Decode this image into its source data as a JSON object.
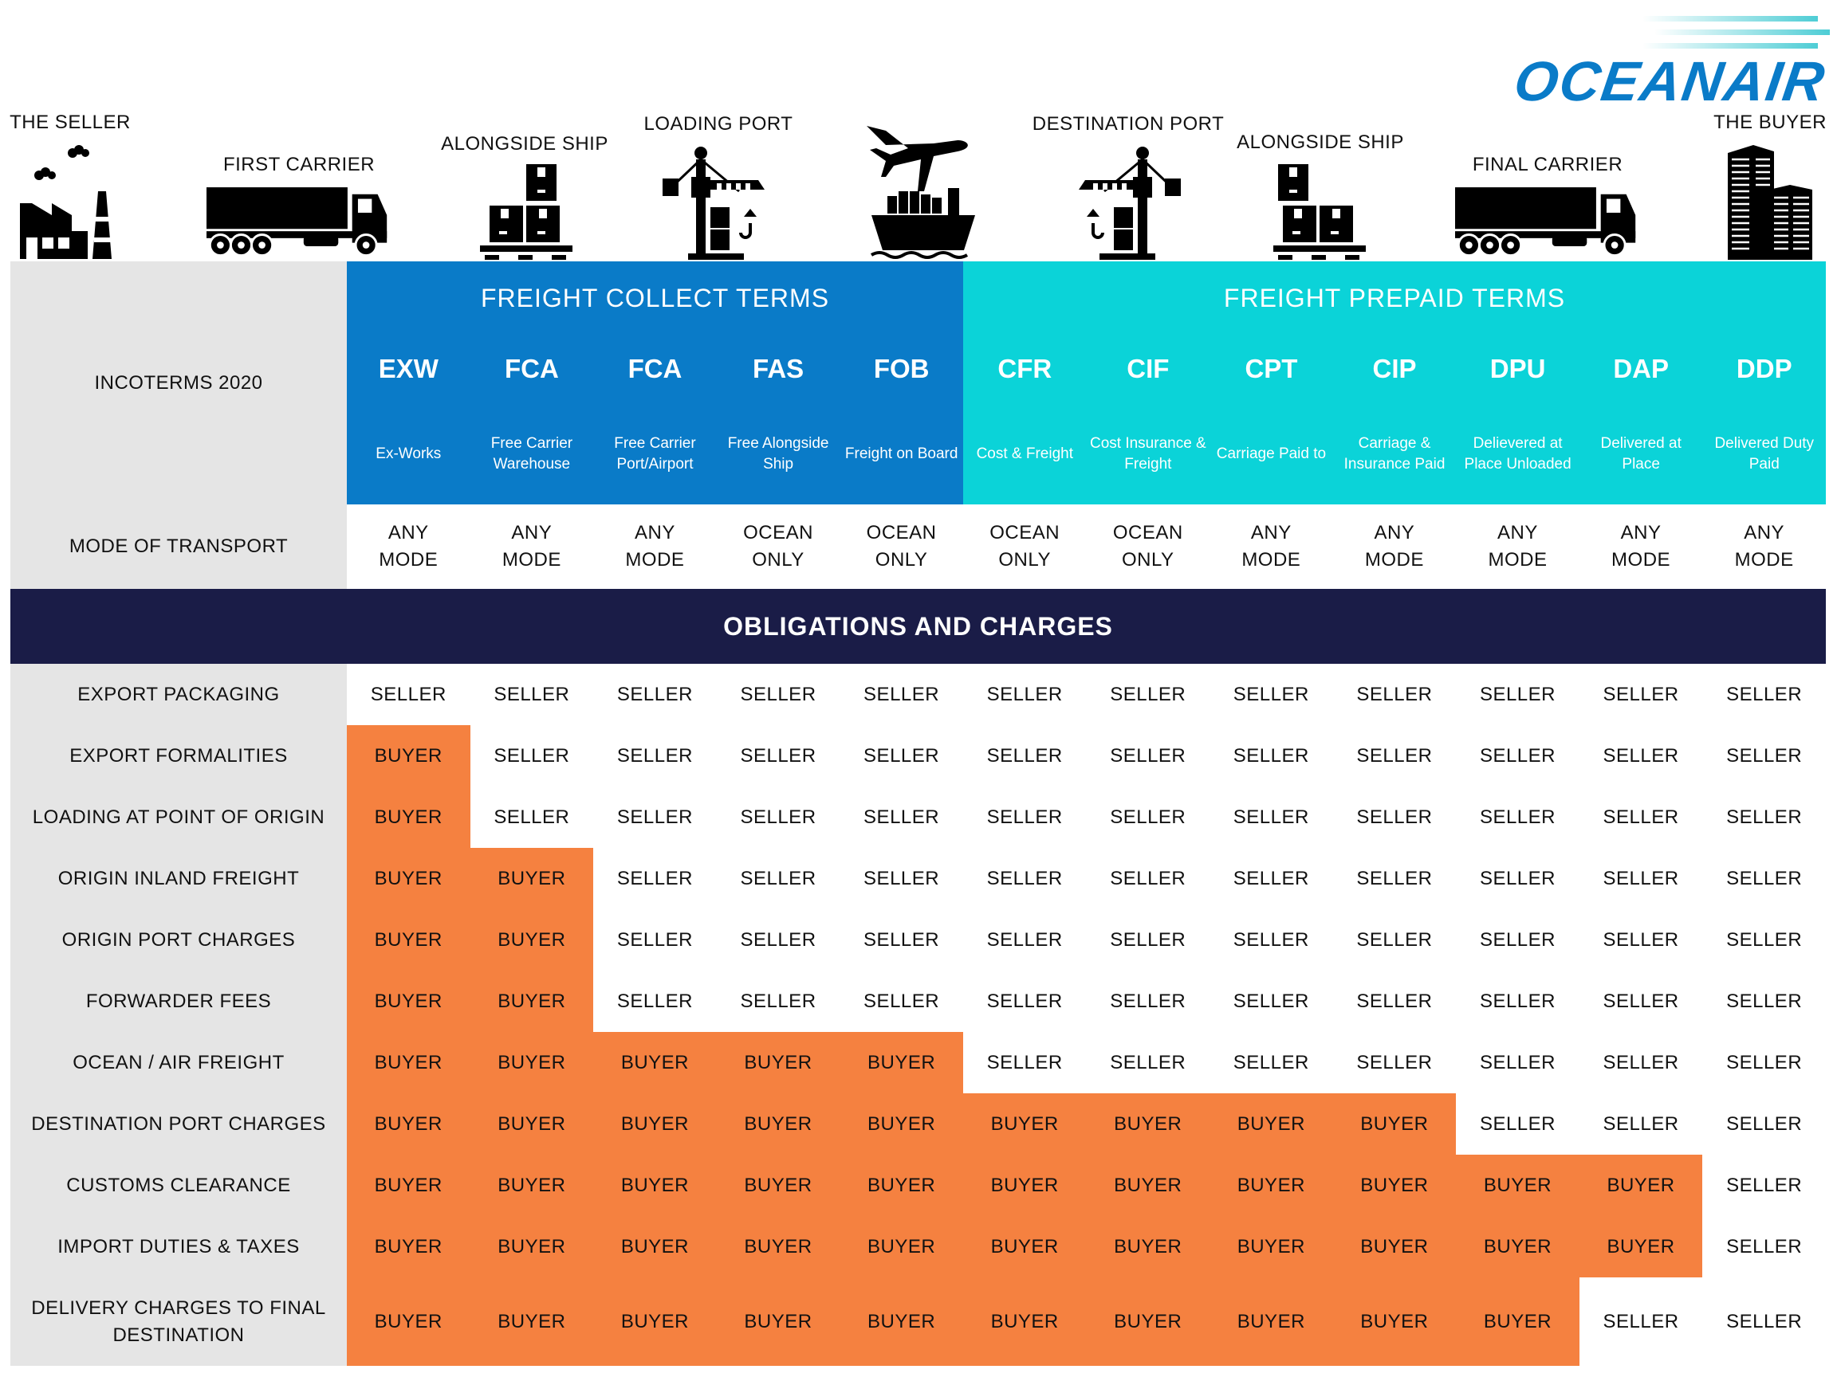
{
  "logo": {
    "text": "OCEANAIR",
    "color": "#0a7bc8",
    "stripe_color": "#4ecdd5"
  },
  "stages": [
    {
      "label": "THE SELLER",
      "icon": "factory-icon"
    },
    {
      "label": "FIRST CARRIER",
      "icon": "truck-icon"
    },
    {
      "label": "ALONGSIDE SHIP",
      "icon": "boxes-pallet-icon"
    },
    {
      "label": "LOADING PORT",
      "icon": "port-crane-icon"
    },
    {
      "label": "",
      "icon": "plane-and-cargo-ship-icon"
    },
    {
      "label": "DESTINATION PORT",
      "icon": "port-crane-icon"
    },
    {
      "label": "ALONGSIDE SHIP",
      "icon": "boxes-pallet-icon"
    },
    {
      "label": "FINAL CARRIER",
      "icon": "truck-icon"
    },
    {
      "label": "THE BUYER",
      "icon": "office-buildings-icon"
    }
  ],
  "colors": {
    "collect": "#0a7bc8",
    "prepaid": "#0bd3d8",
    "obligations_bar": "#1a1c47",
    "buyer": "#f58140",
    "label_column": "#e5e5e5"
  },
  "header": {
    "incoterms_label": "INCOTERMS 2020",
    "mode_label": "MODE OF TRANSPORT",
    "collect_title": "FREIGHT COLLECT TERMS",
    "prepaid_title": "FREIGHT PREPAID TERMS",
    "terms": [
      {
        "code": "EXW",
        "desc": "Ex-Works",
        "mode": [
          "ANY",
          "MODE"
        ]
      },
      {
        "code": "FCA",
        "desc": "Free Carrier Warehouse",
        "mode": [
          "ANY",
          "MODE"
        ]
      },
      {
        "code": "FCA",
        "desc": "Free Carrier Port/Airport",
        "mode": [
          "ANY",
          "MODE"
        ]
      },
      {
        "code": "FAS",
        "desc": "Free Alongside Ship",
        "mode": [
          "OCEAN",
          "ONLY"
        ]
      },
      {
        "code": "FOB",
        "desc": "Freight on Board",
        "mode": [
          "OCEAN",
          "ONLY"
        ]
      },
      {
        "code": "CFR",
        "desc": "Cost & Freight",
        "mode": [
          "OCEAN",
          "ONLY"
        ]
      },
      {
        "code": "CIF",
        "desc": "Cost Insurance & Freight",
        "mode": [
          "OCEAN",
          "ONLY"
        ]
      },
      {
        "code": "CPT",
        "desc": "Carriage Paid to",
        "mode": [
          "ANY",
          "MODE"
        ]
      },
      {
        "code": "CIP",
        "desc": "Carriage & Insurance Paid",
        "mode": [
          "ANY",
          "MODE"
        ]
      },
      {
        "code": "DPU",
        "desc": "Delievered at Place Unloaded",
        "mode": [
          "ANY",
          "MODE"
        ]
      },
      {
        "code": "DAP",
        "desc": "Delivered at Place",
        "mode": [
          "ANY",
          "MODE"
        ]
      },
      {
        "code": "DDP",
        "desc": "Delivered Duty Paid",
        "mode": [
          "ANY",
          "MODE"
        ]
      }
    ]
  },
  "obligations_title": "OBLIGATIONS AND CHARGES",
  "rows": [
    {
      "label": "EXPORT PACKAGING",
      "cells": [
        "SELLER",
        "SELLER",
        "SELLER",
        "SELLER",
        "SELLER",
        "SELLER",
        "SELLER",
        "SELLER",
        "SELLER",
        "SELLER",
        "SELLER",
        "SELLER"
      ]
    },
    {
      "label": "EXPORT FORMALITIES",
      "cells": [
        "BUYER",
        "SELLER",
        "SELLER",
        "SELLER",
        "SELLER",
        "SELLER",
        "SELLER",
        "SELLER",
        "SELLER",
        "SELLER",
        "SELLER",
        "SELLER"
      ]
    },
    {
      "label": "LOADING AT POINT OF ORIGIN",
      "cells": [
        "BUYER",
        "SELLER",
        "SELLER",
        "SELLER",
        "SELLER",
        "SELLER",
        "SELLER",
        "SELLER",
        "SELLER",
        "SELLER",
        "SELLER",
        "SELLER"
      ]
    },
    {
      "label": "ORIGIN INLAND FREIGHT",
      "cells": [
        "BUYER",
        "BUYER",
        "SELLER",
        "SELLER",
        "SELLER",
        "SELLER",
        "SELLER",
        "SELLER",
        "SELLER",
        "SELLER",
        "SELLER",
        "SELLER"
      ]
    },
    {
      "label": "ORIGIN PORT CHARGES",
      "cells": [
        "BUYER",
        "BUYER",
        "SELLER",
        "SELLER",
        "SELLER",
        "SELLER",
        "SELLER",
        "SELLER",
        "SELLER",
        "SELLER",
        "SELLER",
        "SELLER"
      ]
    },
    {
      "label": "FORWARDER FEES",
      "cells": [
        "BUYER",
        "BUYER",
        "SELLER",
        "SELLER",
        "SELLER",
        "SELLER",
        "SELLER",
        "SELLER",
        "SELLER",
        "SELLER",
        "SELLER",
        "SELLER"
      ]
    },
    {
      "label": "OCEAN / AIR FREIGHT",
      "cells": [
        "BUYER",
        "BUYER",
        "BUYER",
        "BUYER",
        "BUYER",
        "SELLER",
        "SELLER",
        "SELLER",
        "SELLER",
        "SELLER",
        "SELLER",
        "SELLER"
      ]
    },
    {
      "label": "DESTINATION PORT CHARGES",
      "cells": [
        "BUYER",
        "BUYER",
        "BUYER",
        "BUYER",
        "BUYER",
        "BUYER",
        "BUYER",
        "BUYER",
        "BUYER",
        "SELLER",
        "SELLER",
        "SELLER"
      ]
    },
    {
      "label": "CUSTOMS CLEARANCE",
      "cells": [
        "BUYER",
        "BUYER",
        "BUYER",
        "BUYER",
        "BUYER",
        "BUYER",
        "BUYER",
        "BUYER",
        "BUYER",
        "BUYER",
        "BUYER",
        "SELLER"
      ]
    },
    {
      "label": "IMPORT DUTIES & TAXES",
      "cells": [
        "BUYER",
        "BUYER",
        "BUYER",
        "BUYER",
        "BUYER",
        "BUYER",
        "BUYER",
        "BUYER",
        "BUYER",
        "BUYER",
        "BUYER",
        "SELLER"
      ]
    },
    {
      "label": "DELIVERY CHARGES TO FINAL DESTINATION",
      "cells": [
        "BUYER",
        "BUYER",
        "BUYER",
        "BUYER",
        "BUYER",
        "BUYER",
        "BUYER",
        "BUYER",
        "BUYER",
        "BUYER",
        "SELLER",
        "SELLER"
      ]
    }
  ]
}
